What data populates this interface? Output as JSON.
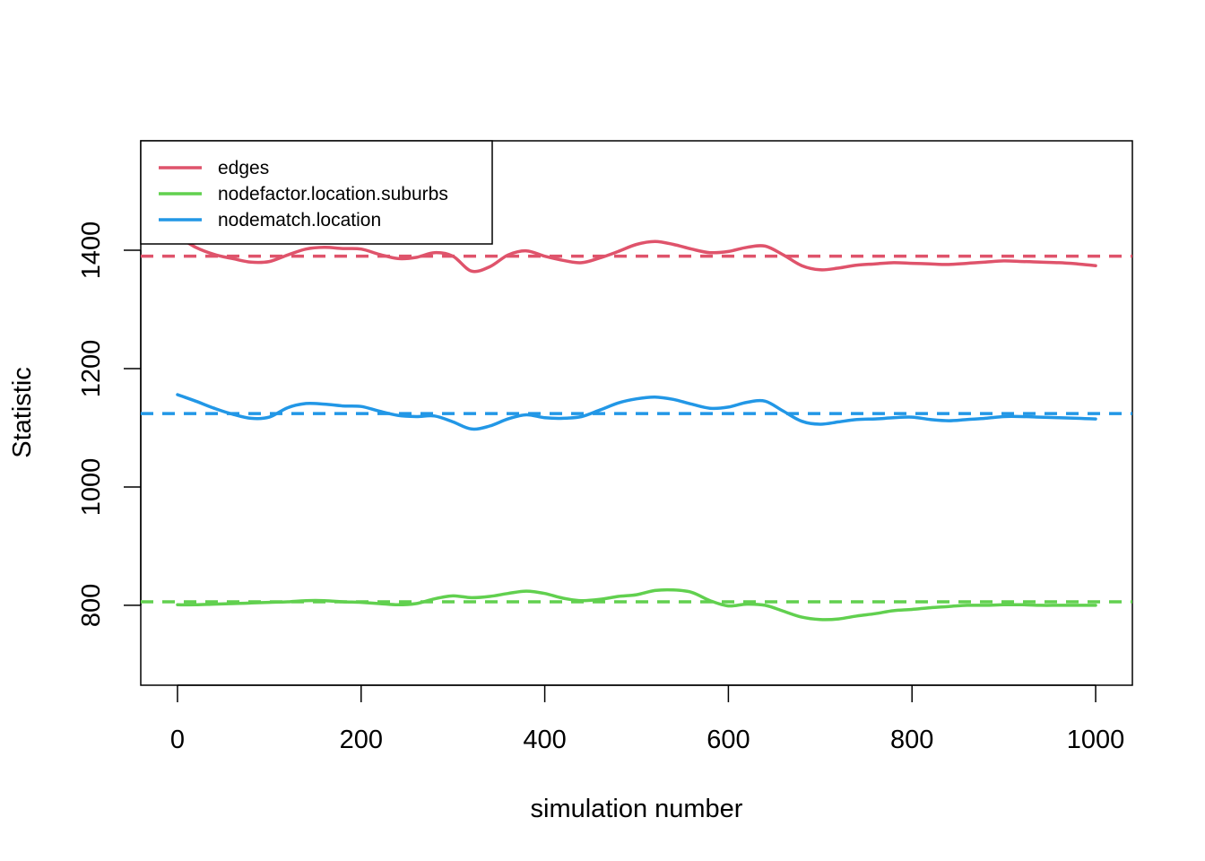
{
  "chart_data": {
    "type": "line",
    "title": "",
    "xlabel": "simulation number",
    "ylabel": "Statistic",
    "xlim": [
      -40,
      1040
    ],
    "ylim": [
      665,
      1585
    ],
    "x_ticks": [
      0,
      200,
      400,
      600,
      800,
      1000
    ],
    "y_ticks": [
      800,
      1000,
      1200,
      1400
    ],
    "grid": false,
    "legend_position": "top-left",
    "series": [
      {
        "name": "edges",
        "color": "#DF536B",
        "target": 1390,
        "x": [
          0,
          20,
          40,
          60,
          80,
          100,
          120,
          140,
          160,
          180,
          200,
          220,
          240,
          260,
          280,
          300,
          320,
          340,
          360,
          380,
          400,
          420,
          440,
          460,
          480,
          500,
          520,
          540,
          560,
          580,
          600,
          620,
          640,
          660,
          680,
          700,
          720,
          740,
          760,
          780,
          800,
          820,
          840,
          860,
          880,
          900,
          920,
          940,
          960,
          980,
          1000
        ],
        "values": [
          1424,
          1405,
          1393,
          1386,
          1380,
          1381,
          1392,
          1402,
          1405,
          1403,
          1402,
          1393,
          1386,
          1388,
          1396,
          1390,
          1365,
          1372,
          1392,
          1399,
          1390,
          1383,
          1379,
          1387,
          1398,
          1410,
          1415,
          1410,
          1402,
          1396,
          1398,
          1405,
          1407,
          1392,
          1374,
          1367,
          1370,
          1375,
          1377,
          1379,
          1378,
          1377,
          1376,
          1378,
          1380,
          1382,
          1381,
          1380,
          1379,
          1377,
          1374
        ]
      },
      {
        "name": "nodefactor.location.suburbs",
        "color": "#61D04F",
        "target": 806,
        "x": [
          0,
          20,
          40,
          60,
          80,
          100,
          120,
          140,
          160,
          180,
          200,
          220,
          240,
          260,
          280,
          300,
          320,
          340,
          360,
          380,
          400,
          420,
          440,
          460,
          480,
          500,
          520,
          540,
          560,
          580,
          600,
          620,
          640,
          660,
          680,
          700,
          720,
          740,
          760,
          780,
          800,
          820,
          840,
          860,
          880,
          900,
          920,
          940,
          960,
          980,
          1000
        ],
        "values": [
          801,
          801,
          802,
          803,
          804,
          805,
          806,
          808,
          808,
          806,
          805,
          803,
          801,
          803,
          811,
          816,
          813,
          815,
          820,
          824,
          820,
          812,
          808,
          810,
          815,
          818,
          825,
          826,
          822,
          808,
          799,
          802,
          800,
          790,
          780,
          776,
          777,
          782,
          786,
          791,
          793,
          796,
          798,
          800,
          800,
          801,
          801,
          800,
          800,
          800,
          800
        ]
      },
      {
        "name": "nodematch.location",
        "color": "#2297E6",
        "target": 1124,
        "x": [
          0,
          20,
          40,
          60,
          80,
          100,
          120,
          140,
          160,
          180,
          200,
          220,
          240,
          260,
          280,
          300,
          320,
          340,
          360,
          380,
          400,
          420,
          440,
          460,
          480,
          500,
          520,
          540,
          560,
          580,
          600,
          620,
          640,
          660,
          680,
          700,
          720,
          740,
          760,
          780,
          800,
          820,
          840,
          860,
          880,
          900,
          920,
          940,
          960,
          980,
          1000
        ],
        "values": [
          1156,
          1145,
          1133,
          1123,
          1116,
          1118,
          1134,
          1141,
          1140,
          1137,
          1136,
          1128,
          1121,
          1119,
          1120,
          1110,
          1098,
          1103,
          1115,
          1122,
          1117,
          1116,
          1119,
          1130,
          1142,
          1149,
          1152,
          1148,
          1140,
          1133,
          1135,
          1143,
          1145,
          1128,
          1111,
          1106,
          1110,
          1114,
          1115,
          1117,
          1118,
          1114,
          1112,
          1114,
          1116,
          1119,
          1119,
          1118,
          1117,
          1116,
          1115
        ]
      }
    ]
  }
}
